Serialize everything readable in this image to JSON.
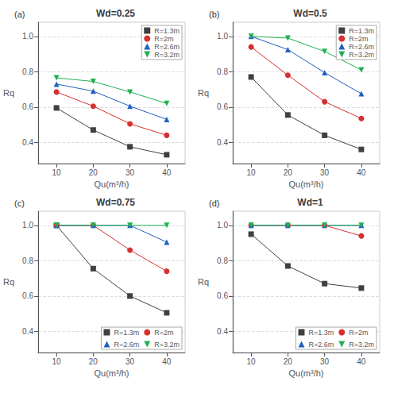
{
  "chart_data": [
    {
      "type": "line",
      "title": "Wd=0.25",
      "annotations": [
        "(a)"
      ],
      "xlabel": "Qu(m³/h)",
      "ylabel": "Rq",
      "x": [
        10,
        20,
        30,
        40
      ],
      "series": [
        {
          "name": "R=1.3m",
          "color": "#404040",
          "marker": "square",
          "values": [
            0.595,
            0.47,
            0.375,
            0.33
          ]
        },
        {
          "name": "R=2m",
          "color": "#d63030",
          "marker": "circle",
          "values": [
            0.685,
            0.605,
            0.505,
            0.44
          ]
        },
        {
          "name": "R=2.6m",
          "color": "#2060c0",
          "marker": "triangle_up",
          "values": [
            0.73,
            0.69,
            0.605,
            0.53
          ]
        },
        {
          "name": "R=3.2m",
          "color": "#20b050",
          "marker": "triangle_down",
          "values": [
            0.765,
            0.745,
            0.685,
            0.62
          ]
        }
      ],
      "xlim": [
        5,
        45
      ],
      "xticks": [
        10,
        20,
        30,
        40
      ],
      "ylim": [
        0.28,
        1.08
      ],
      "yticks": [
        0.4,
        0.6,
        0.8,
        {
          "value": 1.0,
          "label": "1.0"
        }
      ],
      "grid": true,
      "legend": "upper right"
    },
    {
      "type": "line",
      "title": "Wd=0.5",
      "annotations": [
        "(b)"
      ],
      "xlabel": "Qu(m³/h)",
      "ylabel": "Rq",
      "x": [
        10,
        20,
        30,
        40
      ],
      "series": [
        {
          "name": "R=1.3m",
          "color": "#404040",
          "marker": "square",
          "values": [
            0.77,
            0.555,
            0.44,
            0.36
          ]
        },
        {
          "name": "R=2m",
          "color": "#d63030",
          "marker": "circle",
          "values": [
            0.94,
            0.78,
            0.63,
            0.535
          ]
        },
        {
          "name": "R=2.6m",
          "color": "#2060c0",
          "marker": "triangle_up",
          "values": [
            1.0,
            0.925,
            0.795,
            0.675
          ]
        },
        {
          "name": "R=3.2m",
          "color": "#20b050",
          "marker": "triangle_down",
          "values": [
            1.0,
            0.99,
            0.915,
            0.81
          ]
        }
      ],
      "xlim": [
        5,
        45
      ],
      "xticks": [
        10,
        20,
        30,
        40
      ],
      "ylim": [
        0.28,
        1.08
      ],
      "yticks": [
        0.4,
        0.6,
        0.8,
        {
          "value": 1.0,
          "label": "1.0"
        }
      ],
      "grid": true,
      "legend": "upper right"
    },
    {
      "type": "line",
      "title": "Wd=0.75",
      "annotations": [
        "(c)"
      ],
      "xlabel": "Qu(m³/h)",
      "ylabel": "Rq",
      "x": [
        10,
        20,
        30,
        40
      ],
      "series": [
        {
          "name": "R=1.3m",
          "color": "#404040",
          "marker": "square",
          "values": [
            1.0,
            0.755,
            0.6,
            0.505
          ]
        },
        {
          "name": "R=2m",
          "color": "#d63030",
          "marker": "circle",
          "values": [
            1.0,
            1.0,
            0.86,
            0.74
          ]
        },
        {
          "name": "R=2.6m",
          "color": "#2060c0",
          "marker": "triangle_up",
          "values": [
            1.0,
            1.0,
            1.0,
            0.905
          ]
        },
        {
          "name": "R=3.2m",
          "color": "#20b050",
          "marker": "triangle_down",
          "values": [
            1.0,
            1.0,
            1.0,
            1.0
          ]
        }
      ],
      "xlim": [
        5,
        45
      ],
      "xticks": [
        10,
        20,
        30,
        40
      ],
      "ylim": [
        0.28,
        1.08
      ],
      "yticks": [
        0.4,
        0.6,
        0.8,
        {
          "value": 1.0,
          "label": "1.0"
        }
      ],
      "grid": true,
      "legend": "lower right"
    },
    {
      "type": "line",
      "title": "Wd=1",
      "annotations": [
        "(d)"
      ],
      "xlabel": "Qu(m³/h)",
      "ylabel": "Rq",
      "x": [
        10,
        20,
        30,
        40
      ],
      "series": [
        {
          "name": "R=1.3m",
          "color": "#404040",
          "marker": "square",
          "values": [
            0.95,
            0.77,
            0.67,
            0.645
          ]
        },
        {
          "name": "R=2m",
          "color": "#d63030",
          "marker": "circle",
          "values": [
            1.0,
            1.0,
            1.0,
            0.94
          ]
        },
        {
          "name": "R=2.6m",
          "color": "#2060c0",
          "marker": "triangle_up",
          "values": [
            1.0,
            1.0,
            1.0,
            1.0
          ]
        },
        {
          "name": "R=3.2m",
          "color": "#20b050",
          "marker": "triangle_down",
          "values": [
            1.0,
            1.0,
            1.0,
            1.0
          ]
        }
      ],
      "xlim": [
        5,
        45
      ],
      "xticks": [
        10,
        20,
        30,
        40
      ],
      "ylim": [
        0.28,
        1.08
      ],
      "yticks": [
        0.4,
        0.6,
        0.8,
        {
          "value": 1.0,
          "label": "1.0"
        }
      ],
      "grid": true,
      "legend": "lower right"
    }
  ]
}
